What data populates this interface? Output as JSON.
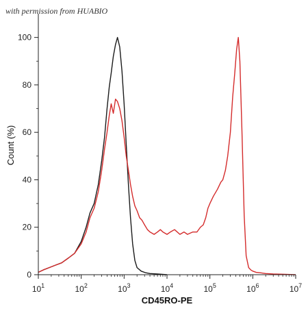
{
  "watermark": "with permission from HUABIO",
  "chart_data": {
    "type": "line",
    "xlabel": "CD45RO-PE",
    "ylabel": "Count (%)",
    "x_scale": "log",
    "xlim": [
      10,
      10000000
    ],
    "ylim": [
      0,
      110
    ],
    "grid": false,
    "legend": "none",
    "x_ticks": [
      {
        "value": 10,
        "base": "10",
        "exp": "1"
      },
      {
        "value": 100,
        "base": "10",
        "exp": "2"
      },
      {
        "value": 1000,
        "base": "10",
        "exp": "3"
      },
      {
        "value": 10000,
        "base": "10",
        "exp": "4"
      },
      {
        "value": 100000,
        "base": "10",
        "exp": "5"
      },
      {
        "value": 1000000,
        "base": "10",
        "exp": "6"
      },
      {
        "value": 10000000,
        "base": "10",
        "exp": "7"
      }
    ],
    "y_ticks": [
      0,
      20,
      40,
      60,
      80,
      100
    ],
    "y_tick_labels": [
      "0",
      "20",
      "40",
      "60",
      "80",
      "100"
    ],
    "series": [
      {
        "color": "#1a1a1a",
        "x": [
          10,
          13,
          18,
          25,
          35,
          50,
          70,
          100,
          130,
          160,
          200,
          250,
          300,
          350,
          400,
          450,
          500,
          560,
          630,
          700,
          790,
          890,
          1000,
          1120,
          1260,
          1410,
          1580,
          1780,
          2000,
          2500,
          3200,
          4000,
          6000,
          10000
        ],
        "y": [
          1,
          2,
          3,
          4,
          5,
          7,
          9,
          14,
          20,
          26,
          30,
          38,
          48,
          58,
          70,
          79,
          85,
          92,
          97,
          100,
          96,
          86,
          72,
          55,
          38,
          24,
          13,
          6,
          3,
          1.5,
          0.8,
          0.5,
          0.3,
          0
        ]
      },
      {
        "color": "#d42b2b",
        "x": [
          10,
          13,
          18,
          25,
          35,
          50,
          70,
          100,
          130,
          160,
          200,
          250,
          300,
          350,
          400,
          450,
          500,
          560,
          630,
          700,
          790,
          890,
          1000,
          1120,
          1260,
          1410,
          1580,
          1780,
          2000,
          2300,
          2600,
          3000,
          3500,
          4000,
          5000,
          6000,
          7000,
          8000,
          10000,
          12000,
          15000,
          20000,
          25000,
          30000,
          40000,
          50000,
          60000,
          70000,
          80000,
          90000,
          100000,
          120000,
          150000,
          180000,
          200000,
          230000,
          260000,
          300000,
          340000,
          380000,
          420000,
          460000,
          500000,
          560000,
          630000,
          700000,
          800000,
          900000,
          1000000,
          1200000,
          1500000,
          2000000,
          3000000,
          5000000,
          10000000
        ],
        "y": [
          1,
          2,
          3,
          4,
          5,
          7,
          9,
          13,
          18,
          24,
          28,
          35,
          44,
          53,
          60,
          67,
          72,
          68,
          74,
          73,
          70,
          65,
          58,
          50,
          44,
          38,
          33,
          29,
          27,
          24,
          23,
          21,
          19,
          18,
          17,
          18,
          19,
          18,
          17,
          18,
          19,
          17,
          18,
          17,
          18,
          18,
          20,
          21,
          24,
          28,
          30,
          33,
          36,
          39,
          40,
          44,
          50,
          60,
          75,
          85,
          95,
          100,
          90,
          60,
          25,
          8,
          3,
          2,
          1.5,
          1,
          0.8,
          0.5,
          0.3,
          0.2,
          0
        ]
      }
    ]
  }
}
